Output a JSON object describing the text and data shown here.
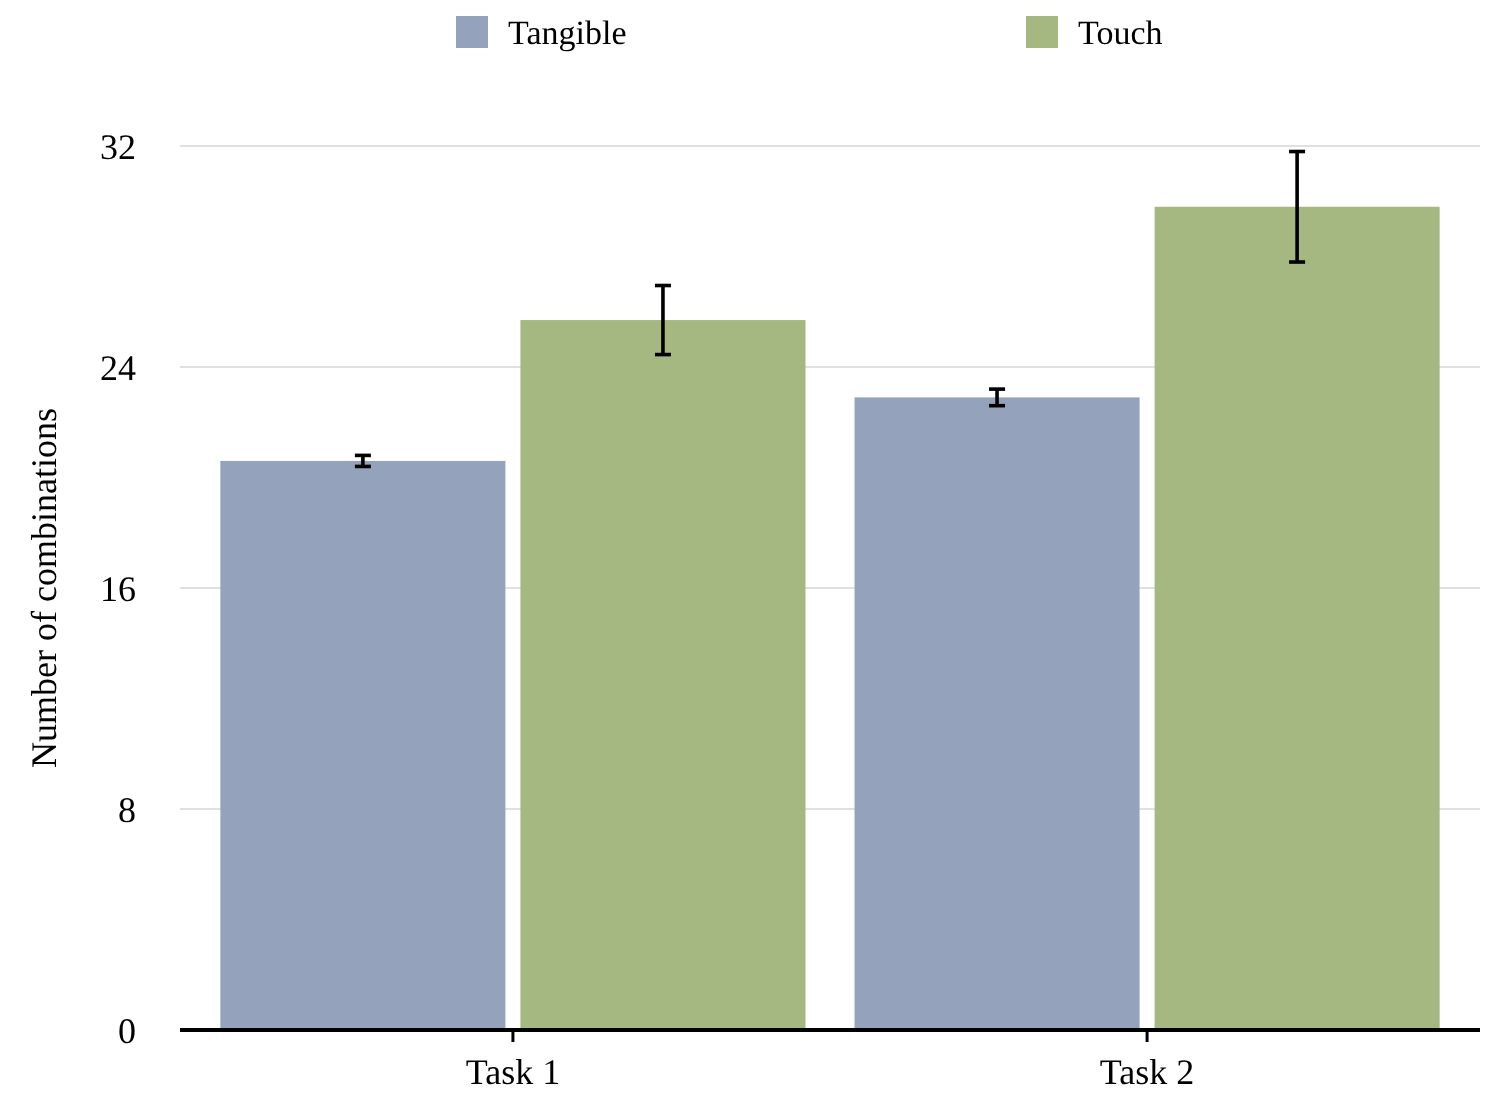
{
  "chart_data": {
    "type": "bar",
    "ylabel": "Number of combinations",
    "categories": [
      "Task 1",
      "Task 2"
    ],
    "series": [
      {
        "name": "Tangible",
        "color": "#94a3bb",
        "values": [
          20.6,
          22.9
        ],
        "errors": [
          0.2,
          0.3
        ]
      },
      {
        "name": "Touch",
        "color": "#a5b882",
        "values": [
          25.7,
          29.8
        ],
        "errors": [
          1.25,
          2.0
        ]
      }
    ],
    "ylim": [
      0,
      32
    ],
    "yticks": [
      0,
      8,
      16,
      24,
      32
    ],
    "grid": "y",
    "legend": "top"
  }
}
